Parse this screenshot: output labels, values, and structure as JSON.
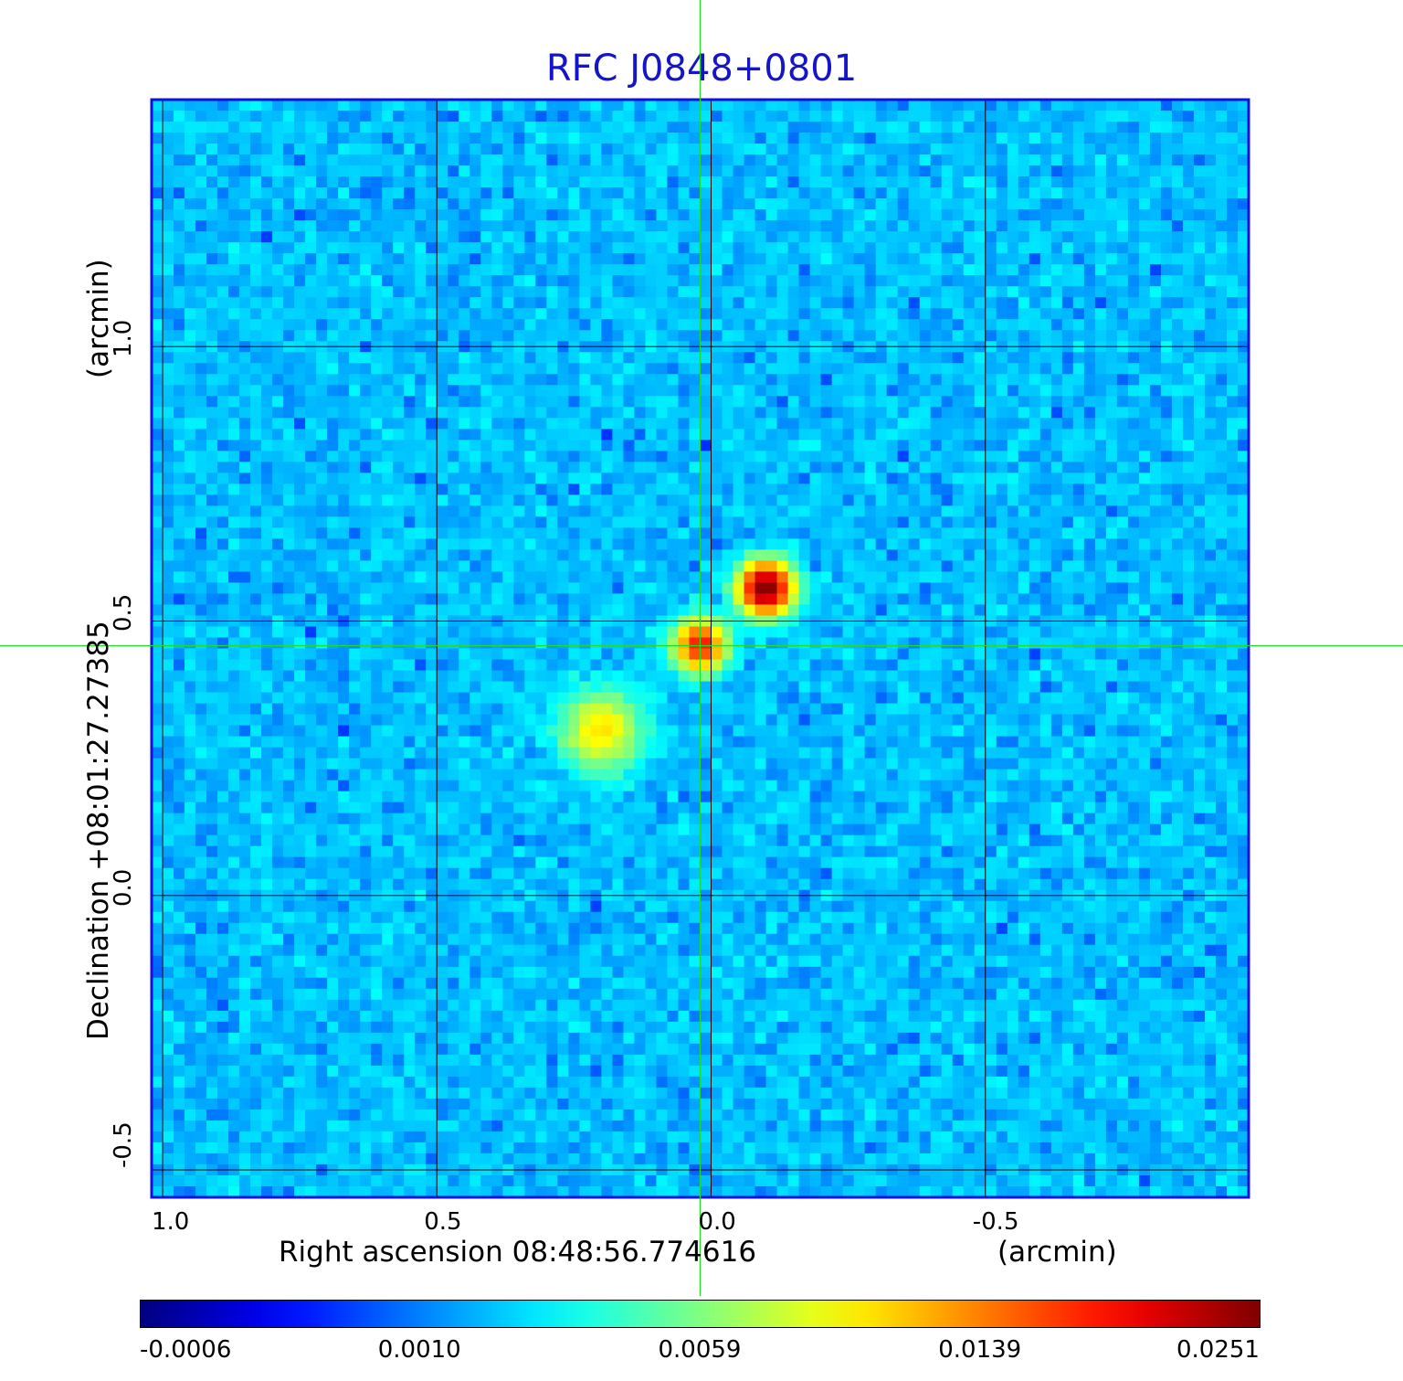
{
  "chart_data": {
    "type": "heatmap",
    "title": "RFC J0848+0801",
    "xlabel": "Right ascension  08:48:56.774616",
    "x_unit": "(arcmin)",
    "ylabel": "Declination  +08:01:27.27385",
    "y_unit": "(arcmin)",
    "xlim": [
      1.02,
      -0.98
    ],
    "ylim": [
      -0.55,
      1.45
    ],
    "x_ticks": [
      "1.0",
      "0.5",
      "0.0",
      "-0.5"
    ],
    "x_tick_values": [
      1.0,
      0.5,
      0.0,
      -0.5
    ],
    "y_ticks": [
      "-0.5",
      "0.0",
      "0.5",
      "1.0"
    ],
    "y_tick_values": [
      -0.5,
      0.0,
      0.5,
      1.0
    ],
    "grid": true,
    "crosshair": {
      "x": 0.02,
      "y": 0.455
    },
    "colormap": "jet",
    "colorbar": {
      "tick_labels": [
        "-0.0006",
        "0.0010",
        "0.0059",
        "0.0139",
        "0.0251"
      ],
      "range": [
        -0.0006,
        0.0251
      ]
    },
    "sources": [
      {
        "x": -0.1,
        "y": 0.56,
        "peak": 0.0251
      },
      {
        "x": 0.02,
        "y": 0.455,
        "peak": 0.016
      },
      {
        "x": 0.2,
        "y": 0.3,
        "peak": 0.0075
      }
    ]
  }
}
